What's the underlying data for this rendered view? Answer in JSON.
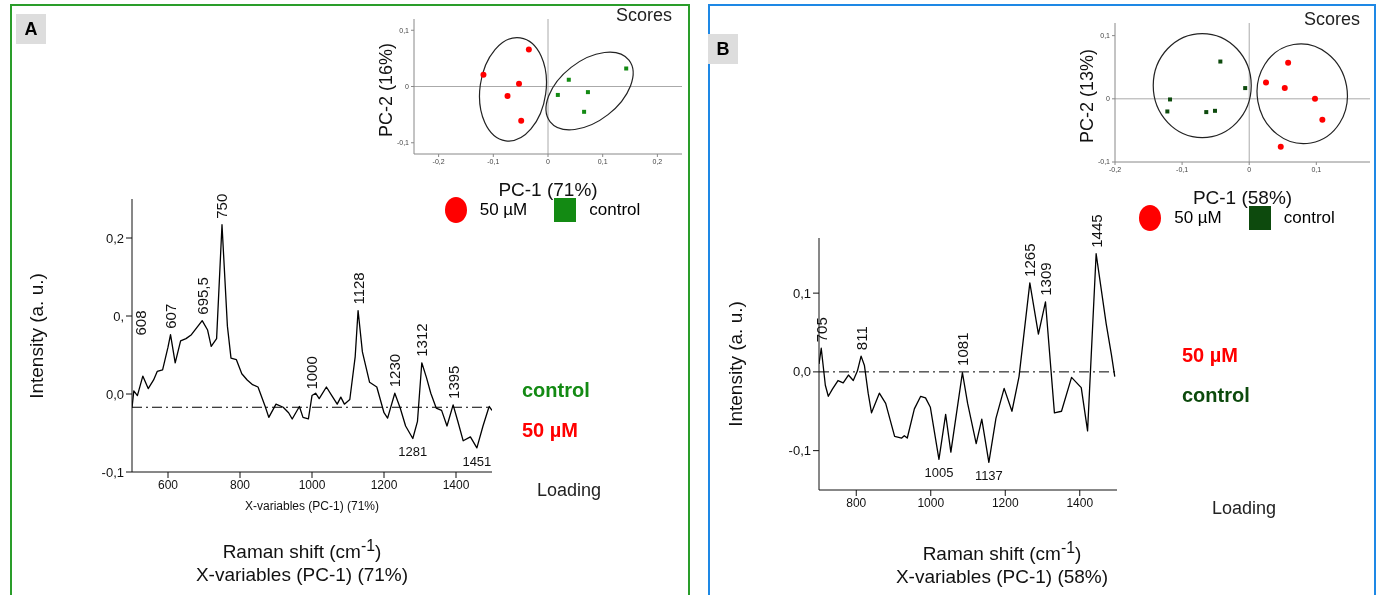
{
  "chart_data": [
    {
      "type": "line",
      "title": "A",
      "ylabel": "Intensity (a. u.)",
      "xlabel": "X-variables (PC-1) (71%)",
      "x": [
        500,
        505,
        515,
        530,
        545,
        560,
        570,
        585,
        600,
        607,
        620,
        635,
        650,
        665,
        680,
        695,
        710,
        720,
        735,
        750,
        765,
        775,
        790,
        805,
        820,
        835,
        850,
        870,
        880,
        900,
        920,
        935,
        945,
        965,
        975,
        990,
        1000,
        1010,
        1020,
        1040,
        1055,
        1070,
        1080,
        1090,
        1105,
        1120,
        1128,
        1140,
        1160,
        1180,
        1200,
        1210,
        1230,
        1245,
        1260,
        1280,
        1293,
        1305,
        1318,
        1330,
        1345,
        1360,
        1375,
        1392,
        1405,
        1420,
        1440,
        1458,
        1475,
        1492,
        1500
      ],
      "series": [
        {
          "color": "#000000",
          "values": [
            -0.018,
            0.004,
            -0.002,
            0.023,
            0.007,
            0.018,
            0.029,
            0.031,
            0.06,
            0.076,
            0.04,
            0.068,
            0.071,
            0.076,
            0.085,
            0.094,
            0.082,
            0.061,
            0.071,
            0.217,
            0.087,
            0.046,
            0.044,
            0.026,
            0.018,
            0.012,
            0.009,
            -0.016,
            -0.03,
            -0.013,
            -0.017,
            -0.024,
            -0.032,
            -0.016,
            -0.03,
            -0.032,
            -0.002,
            0.001,
            -0.006,
            0.009,
            -0.002,
            -0.013,
            -0.004,
            -0.013,
            -0.007,
            0.048,
            0.107,
            0.054,
            0.015,
            0.009,
            -0.024,
            -0.031,
            0.001,
            -0.018,
            -0.041,
            -0.057,
            -0.035,
            0.04,
            0.021,
            0.001,
            -0.018,
            -0.021,
            -0.041,
            -0.014,
            -0.035,
            -0.06,
            -0.055,
            -0.069,
            -0.041,
            -0.016,
            -0.021
          ]
        }
      ],
      "xlim": [
        500,
        1500
      ],
      "xticks": [
        600,
        800,
        1000,
        1200,
        1400
      ],
      "ylim": [
        -0.1,
        0.25
      ],
      "yticks": [
        {
          "value": -0.1,
          "label": "-0,1"
        },
        {
          "value": 0,
          "label": "0,0"
        },
        {
          "value": 0.1,
          "label": "0,"
        },
        {
          "value": 0.2,
          "label": "0,2"
        }
      ],
      "ref_lines": [
        {
          "axis": "y",
          "value": -0.017,
          "color": "#000000",
          "line_style": "dashed"
        }
      ],
      "annotations": [
        "Loading",
        "control",
        "50 µM",
        {
          "text": "750",
          "x": 750,
          "y": 0.217
        },
        "608",
        {
          "text": "607",
          "x": 607,
          "y": 0.076
        },
        {
          "text": "695,5",
          "x": 695,
          "y": 0.094
        },
        {
          "text": "1000",
          "x": 1000,
          "y": -0.002
        },
        {
          "text": "1128",
          "x": 1128,
          "y": 0.107
        },
        {
          "text": "1230",
          "x": 1230,
          "y": 0.001
        },
        {
          "text": "1312",
          "x": 1305,
          "y": 0.04
        },
        {
          "text": "1395",
          "x": 1392,
          "y": -0.014
        },
        {
          "text": "1281",
          "x": 1280,
          "y": -0.057
        },
        {
          "text": "1451",
          "x": 1458,
          "y": -0.069
        },
        "Raman shift (cm$^{-1}$)",
        "X-variables (PC-1) (71%)"
      ],
      "grid": false,
      "marker": "none",
      "line_style": "solid"
    },
    {
      "type": "scatter",
      "title": "Scores",
      "xlabel": "PC-1 (71%)",
      "ylabel": "PC-2 (16%)",
      "series": [
        {
          "name": "50 µM",
          "color": "#ff0000",
          "marker": "circle",
          "x": [
            -0.035,
            -0.118,
            -0.053,
            -0.074,
            -0.049
          ],
          "values": [
            0.066,
            0.021,
            0.005,
            -0.017,
            -0.061
          ]
        },
        {
          "name": "control",
          "color": "#138a13",
          "marker": "square",
          "x": [
            0.143,
            0.038,
            0.018,
            0.073,
            0.066
          ],
          "values": [
            0.032,
            0.012,
            -0.015,
            -0.01,
            -0.045
          ]
        }
      ],
      "xlim": [
        -0.245,
        0.245
      ],
      "xticks": [
        {
          "value": -0.2,
          "label": "-0,2"
        },
        {
          "value": -0.1,
          "label": "-0,1"
        },
        0,
        {
          "value": 0.1,
          "label": "0,1"
        },
        {
          "value": 0.2,
          "label": "0,2"
        }
      ],
      "ylim": [
        -0.12,
        0.12
      ],
      "yticks": [
        {
          "value": -0.1,
          "label": "-0,1"
        },
        0,
        {
          "value": 0.1,
          "label": "0,1"
        }
      ],
      "ref_lines": [
        {
          "axis": "x",
          "value": 0,
          "color": "#aaaaaa"
        },
        {
          "axis": "y",
          "value": 0,
          "color": "#aaaaaa"
        }
      ],
      "grid": false,
      "legend": "bottom"
    },
    {
      "type": "line",
      "title": "B",
      "ylabel": "Intensity (a. u.)",
      "x": [
        700,
        706,
        717,
        725,
        736,
        751,
        765,
        779,
        792,
        803,
        813,
        822,
        832,
        841,
        862,
        879,
        903,
        922,
        929,
        937,
        956,
        973,
        986,
        999,
        1022,
        1040,
        1054,
        1085,
        1099,
        1122,
        1137,
        1156,
        1175,
        1197,
        1218,
        1237,
        1266,
        1289,
        1308,
        1332,
        1351,
        1378,
        1404,
        1421,
        1444,
        1471,
        1485,
        1494
      ],
      "series": [
        {
          "color": "#000000",
          "values": [
            0.01,
            0.03,
            -0.017,
            -0.031,
            -0.022,
            -0.011,
            -0.014,
            -0.004,
            -0.011,
            0.001,
            0.02,
            0.008,
            -0.027,
            -0.052,
            -0.027,
            -0.04,
            -0.082,
            -0.084,
            -0.081,
            -0.084,
            -0.047,
            -0.031,
            -0.033,
            -0.045,
            -0.111,
            -0.054,
            -0.102,
            -0.001,
            -0.04,
            -0.091,
            -0.06,
            -0.115,
            -0.059,
            -0.021,
            -0.05,
            -0.006,
            0.113,
            0.048,
            0.089,
            -0.052,
            -0.05,
            -0.007,
            -0.02,
            -0.075,
            0.15,
            0.061,
            0.022,
            -0.006
          ]
        }
      ],
      "xlim": [
        700,
        1500
      ],
      "xticks": [
        800,
        1000,
        1200,
        1400
      ],
      "ylim": [
        -0.15,
        0.17
      ],
      "yticks": [
        {
          "value": -0.1,
          "label": "-0,1"
        },
        {
          "value": 0,
          "label": "0,0"
        },
        {
          "value": 0.1,
          "label": "0,1"
        }
      ],
      "ref_lines": [
        {
          "axis": "y",
          "value": 0,
          "color": "#000000",
          "line_style": "dashed"
        }
      ],
      "annotations": [
        "Loading",
        "50 µM",
        "control",
        {
          "text": "705",
          "x": 706,
          "y": 0.03
        },
        {
          "text": "811",
          "x": 813,
          "y": 0.02
        },
        {
          "text": "1005",
          "x": 1022,
          "y": -0.111
        },
        {
          "text": "1081",
          "x": 1085,
          "y": 0.0
        },
        {
          "text": "1137",
          "x": 1156,
          "y": -0.115
        },
        {
          "text": "1265",
          "x": 1266,
          "y": 0.113
        },
        {
          "text": "1309",
          "x": 1308,
          "y": 0.089
        },
        {
          "text": "1445",
          "x": 1444,
          "y": 0.15
        },
        "Raman shift (cm$^{-1}$)",
        "X-variables (PC-1) (58%)"
      ],
      "grid": false,
      "marker": "none",
      "line_style": "solid"
    },
    {
      "type": "scatter",
      "title": "Scores",
      "xlabel": "PC-1 (58%)",
      "ylabel": "PC-2 (13%)",
      "series": [
        {
          "name": "50 µM",
          "color": "#ff0000",
          "marker": "circle",
          "x": [
            0.058,
            0.025,
            0.053,
            0.098,
            0.109,
            0.047
          ],
          "values": [
            0.057,
            0.026,
            0.017,
            0.0,
            -0.033,
            -0.076
          ]
        },
        {
          "name": "control",
          "color": "#0d4a0d",
          "marker": "square",
          "x": [
            -0.043,
            -0.006,
            -0.118,
            -0.122,
            -0.064,
            -0.051
          ],
          "values": [
            0.059,
            0.017,
            -0.001,
            -0.02,
            -0.021,
            -0.019
          ]
        }
      ],
      "xlim": [
        -0.2,
        0.18
      ],
      "xticks": [
        {
          "value": -0.2,
          "label": "-0,2"
        },
        {
          "value": -0.1,
          "label": "-0,1"
        },
        0,
        {
          "value": 0.1,
          "label": "0,1"
        }
      ],
      "ylim": [
        -0.1,
        0.12
      ],
      "yticks": [
        {
          "value": -0.1,
          "label": "-0,1"
        },
        0,
        {
          "value": 0.1,
          "label": "0,1"
        }
      ],
      "ref_lines": [
        {
          "axis": "x",
          "value": 0,
          "color": "#aaaaaa"
        },
        {
          "axis": "y",
          "value": 0,
          "color": "#aaaaaa"
        }
      ],
      "grid": false,
      "legend": "bottom"
    }
  ]
}
